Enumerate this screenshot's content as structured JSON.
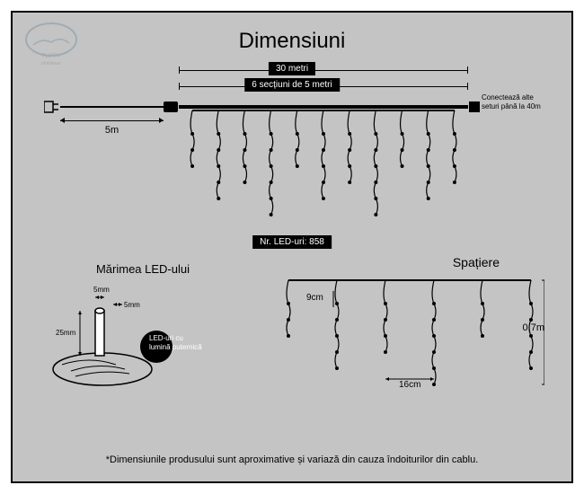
{
  "title": "Dimensiuni",
  "logo_text": "FLIPPY christmas",
  "main": {
    "total_length": "30 metri",
    "sections": "6 secțiuni de 5 metri",
    "lead_cable": "5m",
    "connect_more": "Conectează alte seturi până la 40m",
    "led_count": "Nr. LED-uri: 858"
  },
  "led_size": {
    "heading": "Mărimea LED-ului",
    "w": "5mm",
    "gap": "5mm",
    "h": "25mm",
    "desc": "LED-uri cu lumină puternică"
  },
  "spacing": {
    "heading": "Spațiere",
    "led_gap": "9cm",
    "strand_gap": "16cm",
    "drop": "0,7m"
  },
  "footnote": "*Dimensiunile produsului sunt aproximative și variază din cauza îndoiturilor din cablu.",
  "colors": {
    "bg": "#c4c4c4",
    "fg": "#000000",
    "text_inv": "#ffffff"
  },
  "diagram": {
    "main_strand_count": 11,
    "main_pattern": [
      3,
      5,
      4,
      6,
      3,
      5,
      4,
      6,
      3,
      5,
      4
    ],
    "spacing_strand_count": 6,
    "spacing_pattern": [
      3,
      5,
      4,
      6,
      3,
      5
    ]
  }
}
